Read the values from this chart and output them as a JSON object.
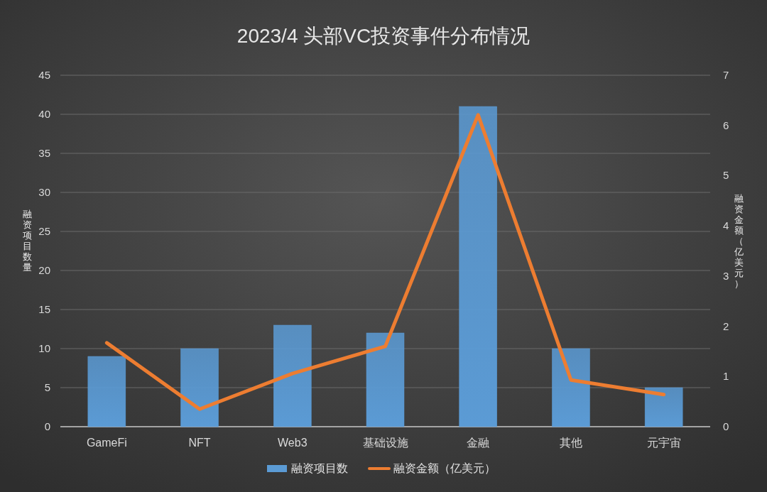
{
  "chart_data": {
    "type": "bar",
    "title": "2023/4 头部VC投资事件分布情况",
    "categories": [
      "GameFi",
      "NFT",
      "Web3",
      "基础设施",
      "金融",
      "其他",
      "元宇宙"
    ],
    "series": [
      {
        "name": "融资项目数",
        "color": "#5b9bd5",
        "values": [
          9,
          10,
          13,
          12,
          41,
          10,
          5
        ]
      },
      {
        "name": "融资金额（亿美元）",
        "type": "line",
        "axis": "y2",
        "color": "#ed7d31",
        "values": [
          1.67,
          0.35,
          1.06,
          1.6,
          6.21,
          0.93,
          0.64
        ]
      }
    ],
    "ylabel": "融资项目数量",
    "y2label": "融资金额（亿美元）",
    "ylim": [
      0,
      45
    ],
    "yticks": [
      0,
      5,
      10,
      15,
      20,
      25,
      30,
      35,
      40,
      45
    ],
    "y2lim": [
      0,
      7
    ],
    "y2ticks": [
      0,
      1,
      2,
      3,
      4,
      5,
      6,
      7
    ],
    "grid": "y",
    "legend": "bottom"
  }
}
